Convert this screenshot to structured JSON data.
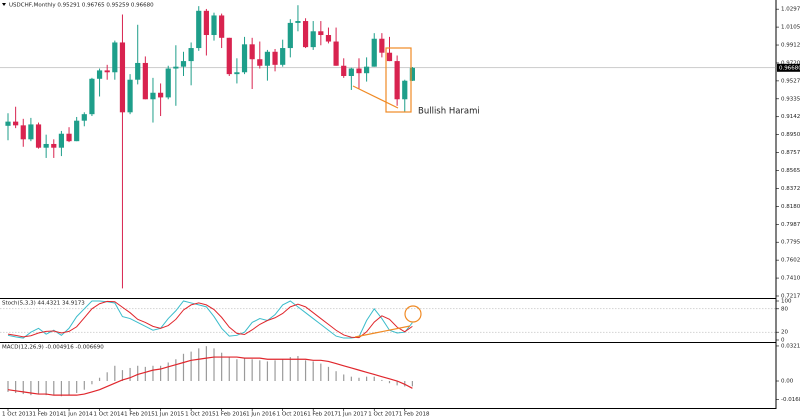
{
  "chart_data": [
    {
      "type": "candlestick",
      "title": "USDCHF,Monthly  0.95291 0.96765 0.95259 0.96680",
      "categories": [
        "1 Oct 2013",
        null,
        null,
        null,
        "1 Feb 2014",
        null,
        null,
        null,
        "1 Jun 2014",
        null,
        null,
        null,
        "1 Oct 2014",
        null,
        null,
        null,
        "1 Feb 2015",
        null,
        null,
        null,
        "1 Jun 2015",
        null,
        null,
        null,
        "1 Oct 2015",
        null,
        null,
        null,
        "1 Feb 2016",
        null,
        null,
        null,
        "1 Jun 2016",
        null,
        null,
        null,
        "1 Oct 2016",
        null,
        null,
        null,
        "1 Feb 2017",
        null,
        null,
        null,
        "1 Jun 2017",
        null,
        null,
        null,
        "1 Oct 2017",
        null,
        null,
        null,
        "1 Feb 2018",
        null
      ],
      "open": [
        0.9045,
        0.909,
        0.905,
        0.89,
        0.906,
        0.881,
        0.885,
        0.881,
        0.896,
        0.888,
        0.91,
        0.917,
        0.955,
        0.964,
        0.962,
        0.994,
        0.919,
        0.954,
        0.972,
        0.933,
        0.94,
        0.935,
        0.966,
        0.968,
        0.974,
        0.988,
        1.028,
        1.002,
        1.023,
        0.999,
        0.96,
        0.962,
        0.992,
        0.976,
        0.969,
        0.984,
        0.97,
        0.988,
        1.015,
        1.017,
        0.989,
        1.006,
        1.002,
        0.995,
        0.969,
        0.958,
        0.966,
        0.961,
        0.968,
        0.998,
        0.983,
        0.974,
        0.933,
        0.95291
      ],
      "high": [
        0.918,
        0.925,
        0.912,
        0.913,
        0.908,
        0.895,
        0.89,
        0.899,
        0.903,
        0.914,
        0.919,
        0.956,
        0.966,
        0.97,
        0.996,
        1.024,
        0.96,
        1.013,
        0.979,
        0.956,
        0.95,
        0.969,
        0.991,
        0.984,
        0.994,
        1.033,
        1.03,
        1.026,
        1.025,
        0.999,
        0.977,
        1.0,
        0.999,
        0.995,
        0.986,
        0.987,
        0.997,
        1.019,
        1.034,
        1.02,
        1.017,
        1.017,
        1.01,
        1.01,
        0.977,
        0.967,
        0.977,
        0.978,
        1.004,
        1.004,
        1.0,
        0.98,
        0.954,
        0.96765
      ],
      "low": [
        0.889,
        0.902,
        0.882,
        0.888,
        0.88,
        0.87,
        0.87,
        0.872,
        0.887,
        0.888,
        0.904,
        0.915,
        0.936,
        0.954,
        0.954,
        0.73,
        0.917,
        0.949,
        0.933,
        0.908,
        0.915,
        0.933,
        0.926,
        0.958,
        0.948,
        0.985,
        0.98,
        0.996,
        0.988,
        0.958,
        0.95,
        0.96,
        0.944,
        0.966,
        0.953,
        0.963,
        0.968,
        0.978,
        1.006,
        0.988,
        0.986,
        0.991,
        0.993,
        0.969,
        0.956,
        0.943,
        0.944,
        0.952,
        0.968,
        0.978,
        0.974,
        0.926,
        0.919,
        0.95259
      ],
      "close": [
        0.909,
        0.905,
        0.89,
        0.906,
        0.881,
        0.885,
        0.881,
        0.896,
        0.888,
        0.91,
        0.917,
        0.955,
        0.964,
        0.962,
        0.994,
        0.919,
        0.954,
        0.972,
        0.933,
        0.94,
        0.935,
        0.966,
        0.968,
        0.974,
        0.988,
        1.028,
        1.002,
        1.023,
        0.999,
        0.96,
        0.962,
        0.992,
        0.976,
        0.969,
        0.984,
        0.97,
        0.988,
        1.015,
        1.017,
        0.989,
        1.006,
        1.002,
        0.995,
        0.969,
        0.958,
        0.966,
        0.961,
        0.968,
        0.998,
        0.983,
        0.974,
        0.933,
        0.95291,
        0.9668
      ],
      "up_color": "#1e9e8a",
      "down_color": "#d8234f",
      "ylim": [
        0.7196,
        1.0396
      ],
      "yticks": [
        0.72175,
        {
          "value": 0.741,
          "label": "0.74100"
        },
        0.76025,
        {
          "value": 0.7795,
          "label": "0.77950"
        },
        0.79875,
        {
          "value": 0.818,
          "label": "0.81800"
        },
        0.83725,
        {
          "value": 0.8565,
          "label": "0.85650"
        },
        0.87575,
        {
          "value": 0.895,
          "label": "0.89500"
        },
        0.91425,
        {
          "value": 0.9335,
          "label": "0.93350"
        },
        0.95275,
        {
          "value": 0.972,
          "label": "0.97200"
        },
        0.99125,
        {
          "value": 1.0105,
          "label": "1.01050"
        },
        1.02975
      ],
      "current_price": {
        "value": 0.9668,
        "label": "0.96680"
      },
      "annotation": "Bullish Harami"
    },
    {
      "type": "line",
      "title": "Stoch(5,3,3) 44.4321 34.9173",
      "series": [
        {
          "color": "#3bbccb",
          "values": [
            12,
            8,
            5,
            20,
            30,
            15,
            25,
            12,
            30,
            60,
            80,
            100,
            100,
            98,
            95,
            60,
            55,
            45,
            35,
            25,
            30,
            55,
            75,
            100,
            95,
            90,
            85,
            60,
            30,
            10,
            12,
            20,
            45,
            55,
            50,
            65,
            90,
            100,
            85,
            70,
            55,
            40,
            25,
            10,
            5,
            5,
            8,
            50,
            80,
            55,
            25,
            18,
            20,
            44.4321
          ]
        },
        {
          "color": "#e0262c",
          "values": [
            15,
            12,
            8,
            11,
            18,
            22,
            23,
            18,
            22,
            34,
            57,
            80,
            93,
            99,
            98,
            84,
            70,
            53,
            45,
            35,
            30,
            37,
            53,
            77,
            90,
            95,
            90,
            78,
            58,
            33,
            17,
            14,
            26,
            40,
            50,
            57,
            68,
            85,
            92,
            85,
            70,
            55,
            40,
            25,
            13,
            7,
            6,
            21,
            46,
            62,
            53,
            33,
            21,
            34.9173
          ]
        }
      ],
      "ylim": [
        0,
        100
      ],
      "yticks": [
        100,
        80,
        20,
        0
      ],
      "grid": true
    },
    {
      "type": "bar",
      "title": "MACD(12,26,9) -0.004916 -0.006690",
      "series": [
        {
          "type": "bar",
          "color": "#9a9a9a",
          "values": [
            -0.01,
            -0.011,
            -0.012,
            -0.013,
            -0.012,
            -0.013,
            -0.013,
            -0.014,
            -0.013,
            -0.011,
            -0.008,
            -0.003,
            0.003,
            0.008,
            0.014,
            0.01,
            0.012,
            0.014,
            0.013,
            0.014,
            0.014,
            0.017,
            0.02,
            0.025,
            0.027,
            0.03,
            0.032,
            0.03,
            0.026,
            0.022,
            0.02,
            0.021,
            0.02,
            0.019,
            0.018,
            0.019,
            0.02,
            0.022,
            0.023,
            0.019,
            0.018,
            0.016,
            0.013,
            0.009,
            0.006,
            0.004,
            0.003,
            0.004,
            0.004,
            0.001,
            -0.002,
            -0.004,
            -0.005,
            -0.004916
          ]
        },
        {
          "type": "line",
          "color": "#e0262c",
          "values": [
            -0.008,
            -0.009,
            -0.01,
            -0.011,
            -0.012,
            -0.012,
            -0.013,
            -0.013,
            -0.013,
            -0.013,
            -0.012,
            -0.01,
            -0.008,
            -0.005,
            -0.002,
            0.001,
            0.003,
            0.006,
            0.008,
            0.01,
            0.011,
            0.013,
            0.015,
            0.017,
            0.019,
            0.02,
            0.021,
            0.022,
            0.022,
            0.022,
            0.022,
            0.021,
            0.021,
            0.021,
            0.02,
            0.02,
            0.02,
            0.02,
            0.02,
            0.02,
            0.019,
            0.019,
            0.018,
            0.016,
            0.014,
            0.012,
            0.01,
            0.008,
            0.006,
            0.004,
            0.002,
            0.0,
            -0.003,
            -0.00669
          ]
        }
      ],
      "ylim": [
        -0.0248,
        0.034
      ],
      "yticks": [
        0.032196,
        {
          "value": 0,
          "label": "0.00"
        },
        -0.016871
      ]
    }
  ]
}
